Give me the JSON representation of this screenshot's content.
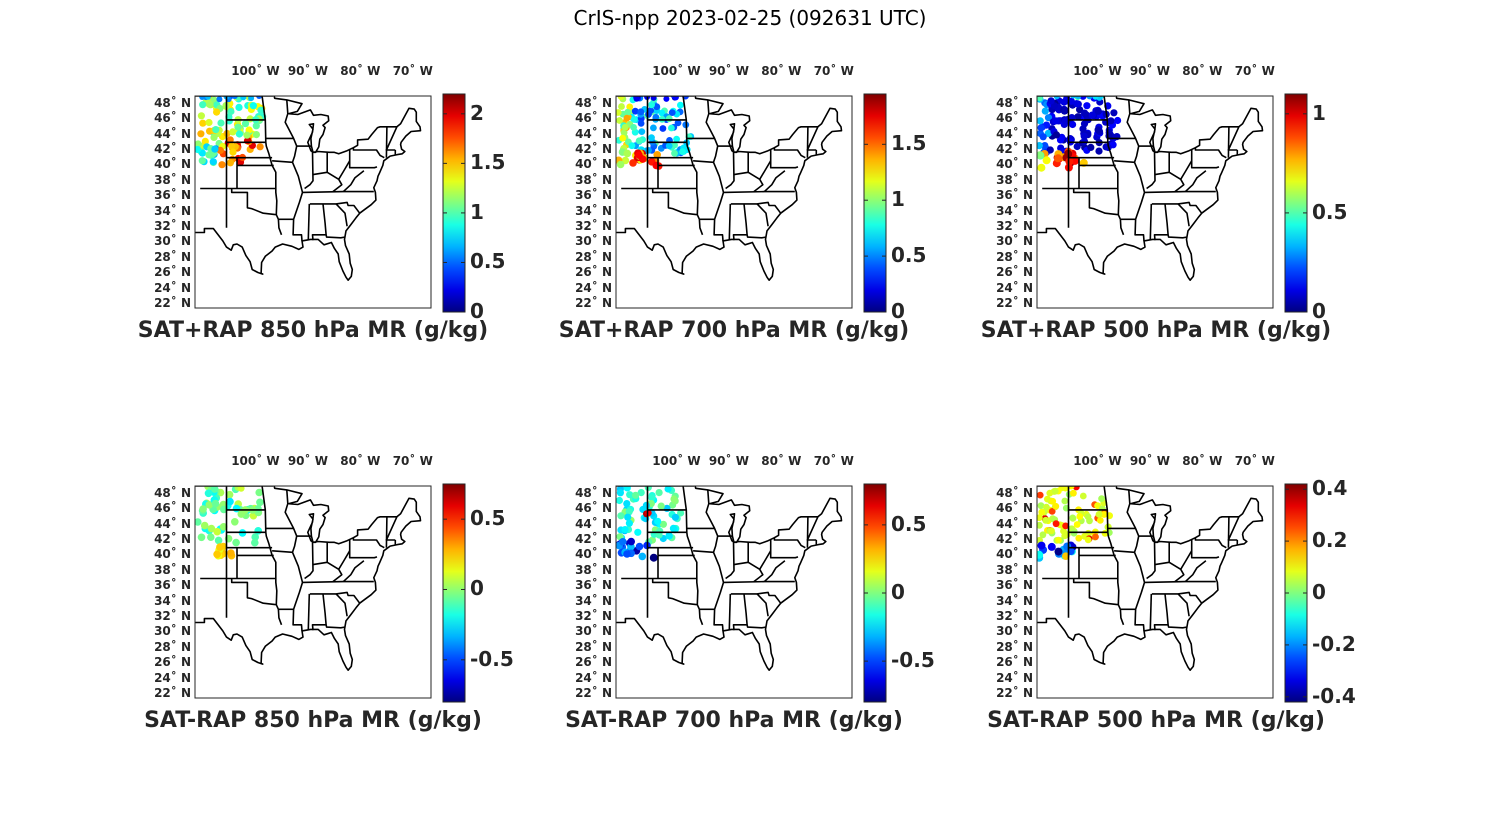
{
  "figure": {
    "title": "CrIS-npp 2023-02-25 (092631 UTC)"
  },
  "lon_ticks": [
    "100˚ W",
    "90˚ W",
    "80˚ W",
    "70˚ W"
  ],
  "lat_ticks": [
    "48˚ N",
    "46˚ N",
    "44˚ N",
    "42˚ N",
    "40˚ N",
    "38˚ N",
    "36˚ N",
    "34˚ N",
    "32˚ N",
    "30˚ N",
    "28˚ N",
    "26˚ N",
    "24˚ N",
    "22˚ N"
  ],
  "colormap": "jet",
  "panels": [
    {
      "title": "SAT+RAP 850 hPa MR (g/kg)",
      "clim": [
        0,
        2.2
      ],
      "ticks": [
        "0",
        "0.5",
        "1",
        "1.5",
        "2"
      ],
      "tick_values": [
        0,
        0.5,
        1,
        1.5,
        2
      ],
      "scheme": "sum850"
    },
    {
      "title": "SAT+RAP 700 hPa MR (g/kg)",
      "clim": [
        0,
        1.95
      ],
      "ticks": [
        "0",
        "0.5",
        "1",
        "1.5"
      ],
      "tick_values": [
        0,
        0.5,
        1,
        1.5
      ],
      "scheme": "sum700"
    },
    {
      "title": "SAT+RAP 500 hPa MR (g/kg)",
      "clim": [
        0,
        1.1
      ],
      "ticks": [
        "0",
        "0.5",
        "1"
      ],
      "tick_values": [
        0,
        0.5,
        1
      ],
      "scheme": "sum500"
    },
    {
      "title": "SAT-RAP 850 hPa MR (g/kg)",
      "clim": [
        -0.8,
        0.75
      ],
      "ticks": [
        "-0.5",
        "0",
        "0.5"
      ],
      "tick_values": [
        -0.5,
        0,
        0.5
      ],
      "scheme": "diff850"
    },
    {
      "title": "SAT-RAP 700 hPa MR (g/kg)",
      "clim": [
        -0.8,
        0.8
      ],
      "ticks": [
        "-0.5",
        "0",
        "0.5"
      ],
      "tick_values": [
        -0.5,
        0,
        0.5
      ],
      "scheme": "diff700"
    },
    {
      "title": "SAT-RAP 500 hPa MR (g/kg)",
      "clim": [
        -0.42,
        0.42
      ],
      "ticks": [
        "-0.4",
        "-0.2",
        "0",
        "0.2",
        "0.4"
      ],
      "tick_values": [
        -0.4,
        -0.2,
        0,
        0.2,
        0.4
      ],
      "scheme": "diff500"
    }
  ]
}
